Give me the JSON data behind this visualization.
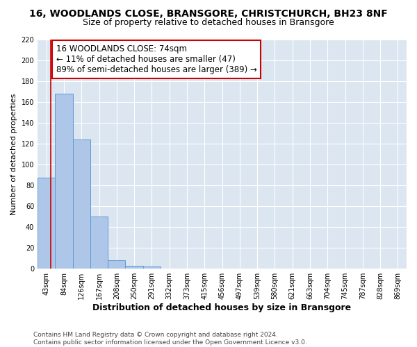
{
  "title": "16, WOODLANDS CLOSE, BRANSGORE, CHRISTCHURCH, BH23 8NF",
  "subtitle": "Size of property relative to detached houses in Bransgore",
  "xlabel": "Distribution of detached houses by size in Bransgore",
  "ylabel": "Number of detached properties",
  "bar_values": [
    87,
    168,
    124,
    50,
    8,
    3,
    2,
    0,
    0,
    0,
    0,
    0,
    0,
    0,
    0,
    0,
    0,
    0,
    0,
    0,
    0
  ],
  "x_labels": [
    "43sqm",
    "84sqm",
    "126sqm",
    "167sqm",
    "208sqm",
    "250sqm",
    "291sqm",
    "332sqm",
    "373sqm",
    "415sqm",
    "456sqm",
    "497sqm",
    "539sqm",
    "580sqm",
    "621sqm",
    "663sqm",
    "704sqm",
    "745sqm",
    "787sqm",
    "828sqm",
    "869sqm"
  ],
  "bar_color": "#aec6e8",
  "bar_edge_color": "#5b9bd5",
  "ylim": [
    0,
    220
  ],
  "yticks": [
    0,
    20,
    40,
    60,
    80,
    100,
    120,
    140,
    160,
    180,
    200,
    220
  ],
  "annotation_text": "16 WOODLANDS CLOSE: 74sqm\n← 11% of detached houses are smaller (47)\n89% of semi-detached houses are larger (389) →",
  "annotation_box_color": "#cc0000",
  "background_color": "#dce6f1",
  "footer_text": "Contains HM Land Registry data © Crown copyright and database right 2024.\nContains public sector information licensed under the Open Government Licence v3.0.",
  "title_fontsize": 10,
  "subtitle_fontsize": 9,
  "xlabel_fontsize": 9,
  "ylabel_fontsize": 8,
  "tick_fontsize": 7,
  "annotation_fontsize": 8.5,
  "footer_fontsize": 6.5
}
